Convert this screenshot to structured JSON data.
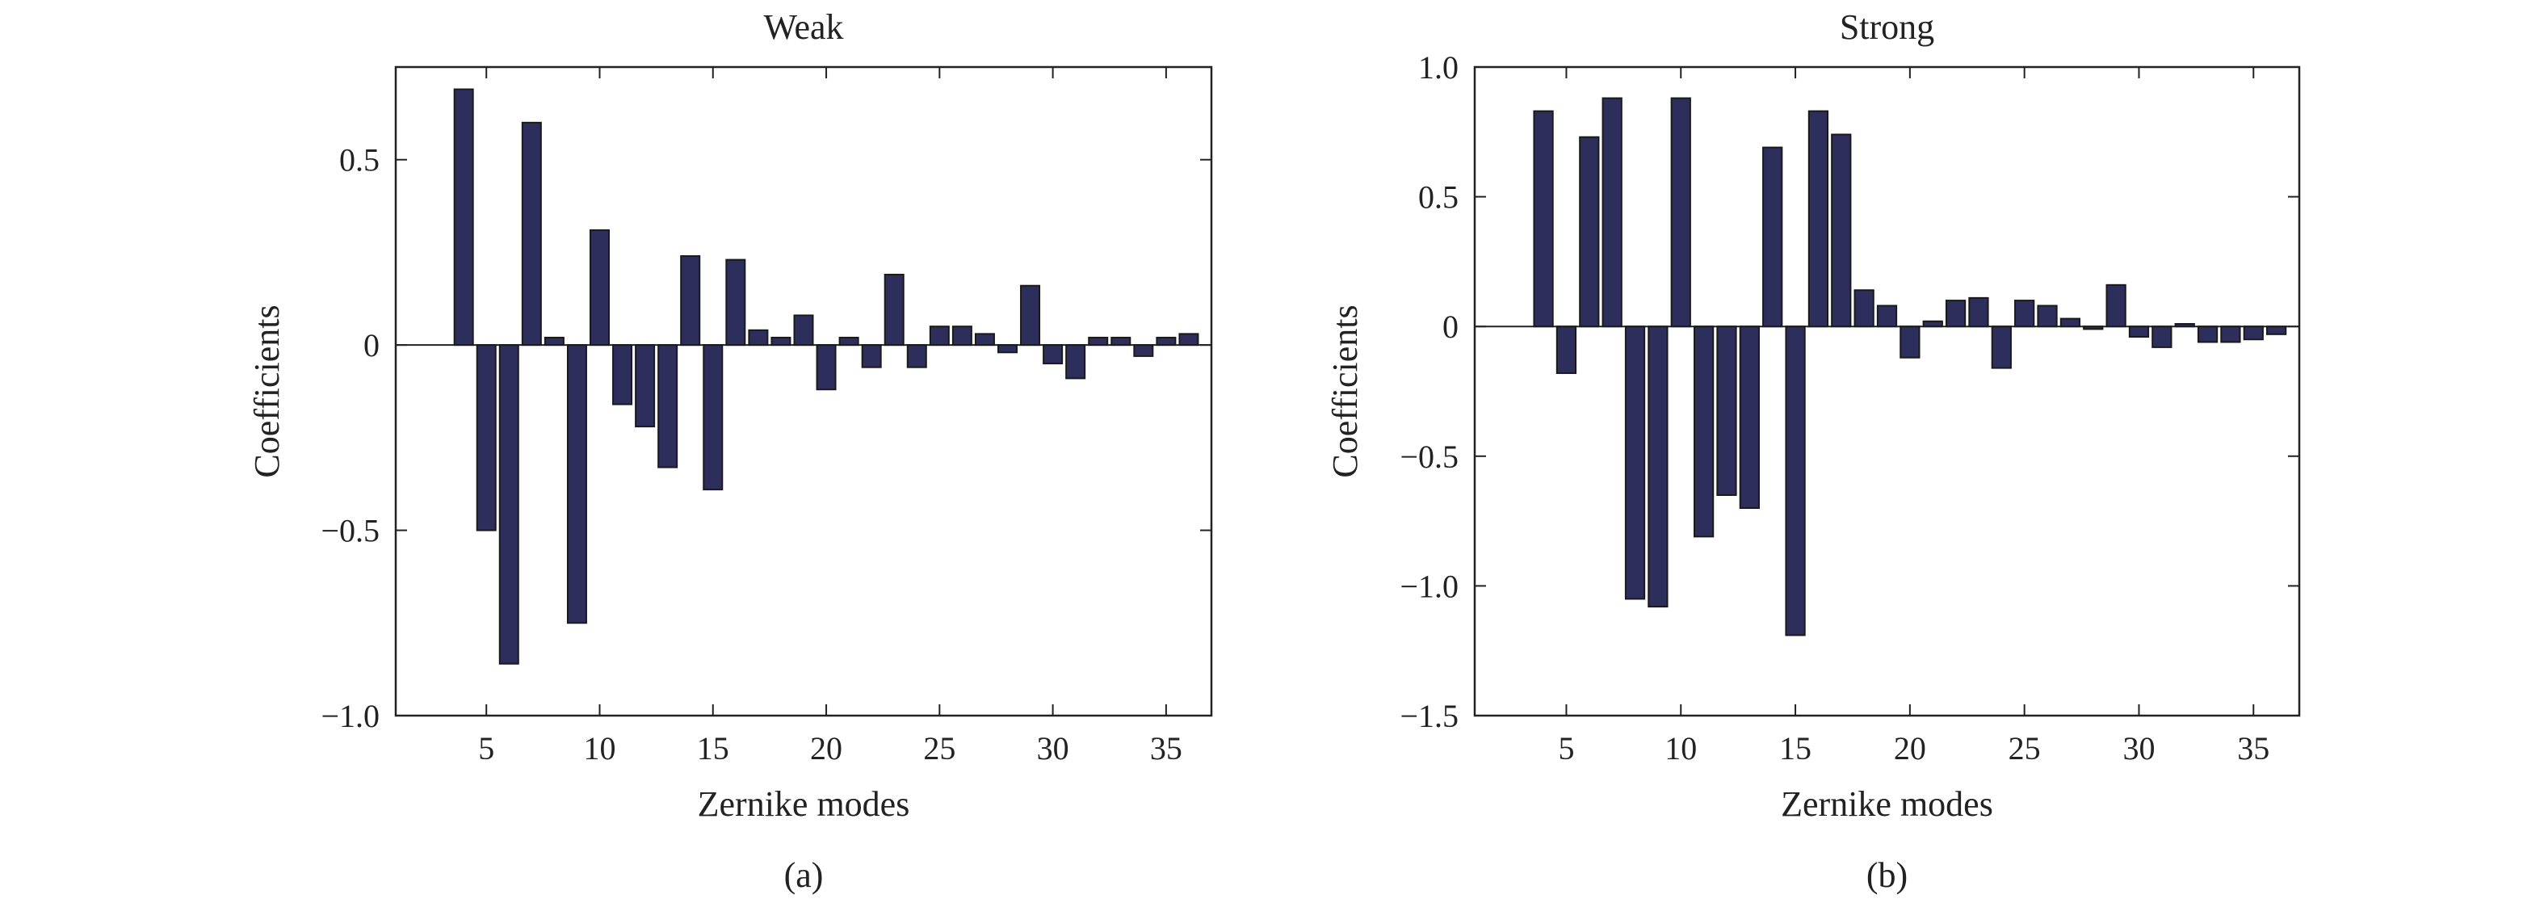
{
  "colors": {
    "bar_fill": "#2e2e5c",
    "bar_edge": "#1a1a1a",
    "axis": "#222222"
  },
  "chart_data": [
    {
      "type": "bar",
      "title": "Weak",
      "xlabel": "Zernike modes",
      "ylabel": "Coefficients",
      "caption": "(a)",
      "xlim": [
        1,
        37
      ],
      "ylim": [
        -1.0,
        0.75
      ],
      "xticks": [
        5,
        10,
        15,
        20,
        25,
        30,
        35
      ],
      "yticks": [
        -1.0,
        -0.5,
        0,
        0.5
      ],
      "ytick_labels": [
        "−1.0",
        "−0.5",
        "0",
        "0.5"
      ],
      "x": [
        4,
        5,
        6,
        7,
        8,
        9,
        10,
        11,
        12,
        13,
        14,
        15,
        16,
        17,
        18,
        19,
        20,
        21,
        22,
        23,
        24,
        25,
        26,
        27,
        28,
        29,
        30,
        31,
        32,
        33,
        34,
        35,
        36
      ],
      "values": [
        0.69,
        -0.5,
        -0.86,
        0.6,
        0.02,
        -0.75,
        0.31,
        -0.16,
        -0.22,
        -0.33,
        0.24,
        -0.39,
        0.23,
        0.04,
        0.02,
        0.08,
        -0.12,
        0.02,
        -0.06,
        0.19,
        -0.06,
        0.05,
        0.05,
        0.03,
        -0.02,
        0.16,
        -0.05,
        -0.09,
        0.02,
        0.02,
        -0.03,
        0.02,
        0.03
      ]
    },
    {
      "type": "bar",
      "title": "Strong",
      "xlabel": "Zernike modes",
      "ylabel": "Coefficients",
      "caption": "(b)",
      "xlim": [
        1,
        37
      ],
      "ylim": [
        -1.5,
        1.0
      ],
      "xticks": [
        5,
        10,
        15,
        20,
        25,
        30,
        35
      ],
      "yticks": [
        -1.5,
        -1.0,
        -0.5,
        0,
        0.5,
        1.0
      ],
      "ytick_labels": [
        "−1.5",
        "−1.0",
        "−0.5",
        "0",
        "0.5",
        "1.0"
      ],
      "x": [
        4,
        5,
        6,
        7,
        8,
        9,
        10,
        11,
        12,
        13,
        14,
        15,
        16,
        17,
        18,
        19,
        20,
        21,
        22,
        23,
        24,
        25,
        26,
        27,
        28,
        29,
        30,
        31,
        32,
        33,
        34,
        35,
        36
      ],
      "values": [
        0.83,
        -0.18,
        0.73,
        0.88,
        -1.05,
        -1.08,
        0.88,
        -0.81,
        -0.65,
        -0.7,
        0.69,
        -1.19,
        0.83,
        0.74,
        0.14,
        0.08,
        -0.12,
        0.02,
        0.1,
        0.11,
        -0.16,
        0.1,
        0.08,
        0.03,
        -0.01,
        0.16,
        -0.04,
        -0.08,
        0.01,
        -0.06,
        -0.06,
        -0.05,
        -0.03
      ]
    }
  ]
}
